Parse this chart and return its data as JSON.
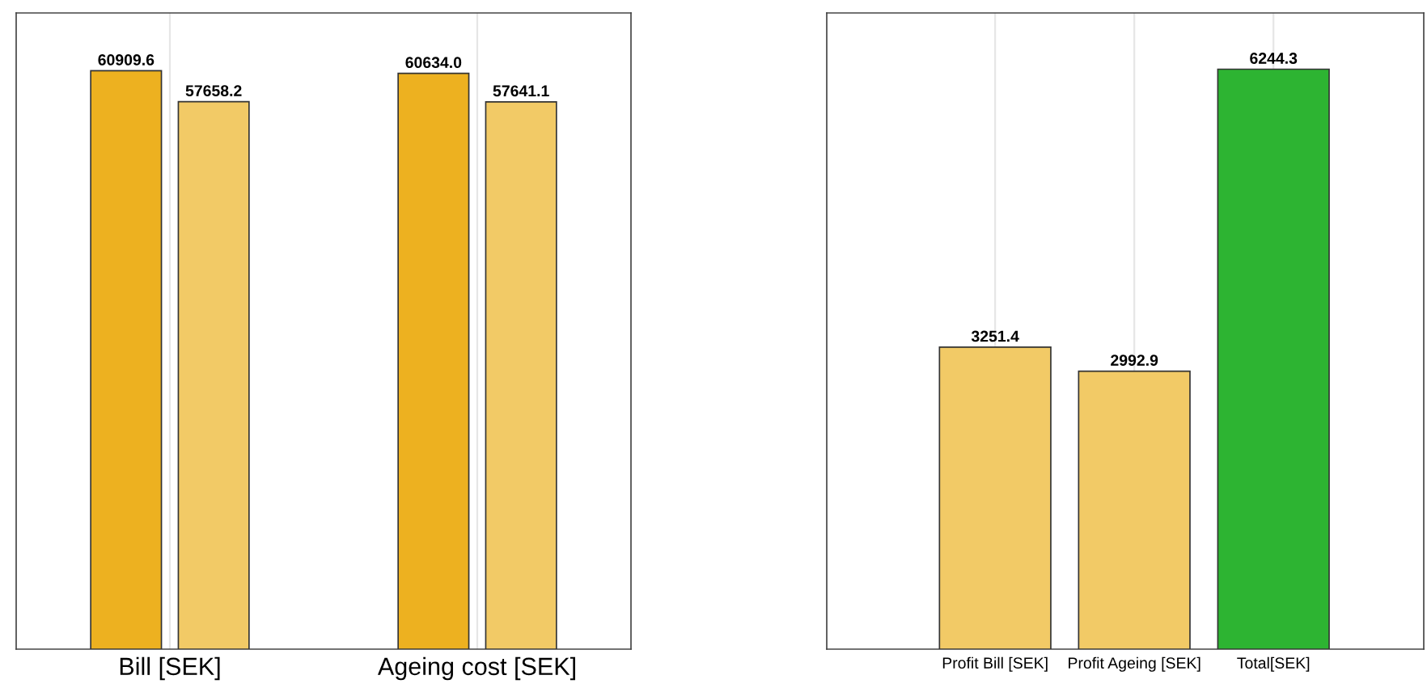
{
  "chart_data": [
    {
      "type": "bar",
      "categories": [
        "Bill [SEK]",
        "Ageing cost [SEK]"
      ],
      "series": [
        {
          "color": "#edb120",
          "values": [
            60909.6,
            60634.0
          ],
          "value_labels": [
            "60909.6",
            "60634.0"
          ]
        },
        {
          "color": "#f2ca66",
          "values": [
            57658.2,
            57641.1
          ]
        }
      ],
      "ylim": [
        0,
        67000
      ],
      "tick_labels": "x",
      "data_labels": true,
      "grid": "x"
    },
    {
      "type": "bar",
      "categories": [
        "Profit Bill [SEK]",
        "Profit Ageing [SEK]",
        "Total[SEK]"
      ],
      "values": [
        3251.4,
        2992.9,
        6244.3
      ],
      "colors": [
        "#f2ca66",
        "#f2ca66",
        "#2db432"
      ],
      "ylim": [
        0,
        6850
      ],
      "tick_labels": "x",
      "data_labels": true,
      "grid": "x"
    }
  ]
}
